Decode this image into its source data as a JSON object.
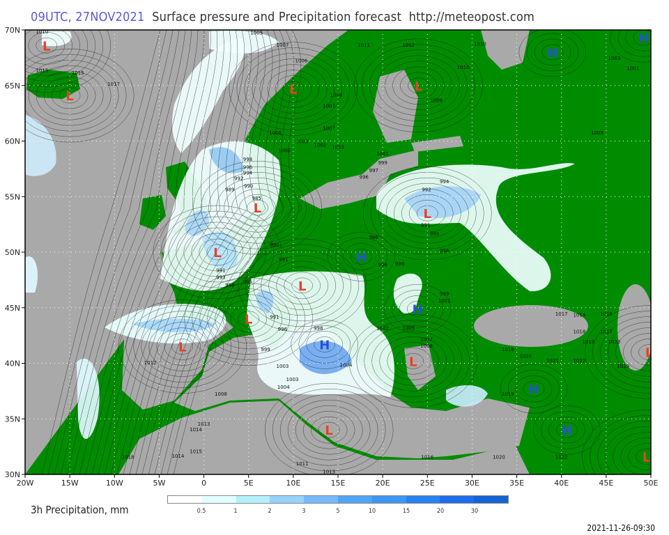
{
  "title": {
    "time": "09UTC, 27NOV2021",
    "text": "Surface pressure and Precipitation forecast",
    "url": "http://meteopost.com"
  },
  "map": {
    "lon_range": [
      -20,
      50
    ],
    "lat_range": [
      30,
      70
    ],
    "colors": {
      "sea": "#a9a9a9",
      "land": "#008c00",
      "low": "#e8402a",
      "high": "#2850d8",
      "isobar": "#1a1a1a",
      "grid": "#ffffff"
    },
    "lon_ticks": [
      "20W",
      "15W",
      "10W",
      "5W",
      "0",
      "5E",
      "10E",
      "15E",
      "20E",
      "25E",
      "30E",
      "35E",
      "40E",
      "45E",
      "50E"
    ],
    "lat_ticks": [
      "30N",
      "35N",
      "40N",
      "45N",
      "50N",
      "55N",
      "60N",
      "65N",
      "70N"
    ],
    "centers": [
      {
        "type": "L",
        "lon": -17.6,
        "lat": 68.6
      },
      {
        "type": "L",
        "lon": -15,
        "lat": 64.1
      },
      {
        "type": "L",
        "lon": 10,
        "lat": 64.7
      },
      {
        "type": "L",
        "lon": 24,
        "lat": 65
      },
      {
        "type": "L",
        "lon": 6,
        "lat": 54
      },
      {
        "type": "L",
        "lon": 1.5,
        "lat": 50
      },
      {
        "type": "L",
        "lon": 25,
        "lat": 53.5
      },
      {
        "type": "L",
        "lon": 11,
        "lat": 47
      },
      {
        "type": "L",
        "lon": 5,
        "lat": 44
      },
      {
        "type": "L",
        "lon": -2.4,
        "lat": 41.5
      },
      {
        "type": "L",
        "lon": 23.4,
        "lat": 40.2
      },
      {
        "type": "L",
        "lon": 14,
        "lat": 34
      },
      {
        "type": "L",
        "lon": 49.8,
        "lat": 41
      },
      {
        "type": "L",
        "lon": 49.5,
        "lat": 31.6
      },
      {
        "type": "H",
        "lon": 39,
        "lat": 68
      },
      {
        "type": "H",
        "lon": 49.2,
        "lat": 69.3
      },
      {
        "type": "H",
        "lon": 17.6,
        "lat": 49.6
      },
      {
        "type": "H",
        "lon": 23.9,
        "lat": 44.9
      },
      {
        "type": "H",
        "lon": 13.5,
        "lat": 41.7
      },
      {
        "type": "H",
        "lon": 36.9,
        "lat": 37.7
      },
      {
        "type": "H",
        "lon": 40.6,
        "lat": 34
      }
    ],
    "isobar_labels": [
      {
        "v": "1010",
        "lon": -18.1,
        "lat": 69.7
      },
      {
        "v": "1005",
        "lon": 5.9,
        "lat": 69.6
      },
      {
        "v": "1007",
        "lon": 8.8,
        "lat": 68.5
      },
      {
        "v": "1006",
        "lon": 10.9,
        "lat": 67.1
      },
      {
        "v": "1011",
        "lon": 17.9,
        "lat": 68.5
      },
      {
        "v": "1012",
        "lon": 22.9,
        "lat": 68.5
      },
      {
        "v": "1010",
        "lon": 30.9,
        "lat": 68.6
      },
      {
        "v": "1015",
        "lon": -18.1,
        "lat": 66.2
      },
      {
        "v": "1015",
        "lon": -14.1,
        "lat": 66
      },
      {
        "v": "1017",
        "lon": -10.1,
        "lat": 65
      },
      {
        "v": "1008",
        "lon": 14.8,
        "lat": 64
      },
      {
        "v": "1007",
        "lon": 14,
        "lat": 63
      },
      {
        "v": "1009",
        "lon": 26,
        "lat": 63.5
      },
      {
        "v": "1010",
        "lon": 29,
        "lat": 66.5
      },
      {
        "v": "1003",
        "lon": 45.9,
        "lat": 67.3
      },
      {
        "v": "1001",
        "lon": 48,
        "lat": 66.4
      },
      {
        "v": "1009",
        "lon": 44,
        "lat": 60.6
      },
      {
        "v": "1007",
        "lon": 14,
        "lat": 61
      },
      {
        "v": "1003",
        "lon": 15,
        "lat": 59.3
      },
      {
        "v": "1001",
        "lon": 20,
        "lat": 58.7
      },
      {
        "v": "999",
        "lon": 20,
        "lat": 57.9
      },
      {
        "v": "997",
        "lon": 19,
        "lat": 57.2
      },
      {
        "v": "996",
        "lon": 17.9,
        "lat": 56.6
      },
      {
        "v": "998",
        "lon": 4.9,
        "lat": 58.2
      },
      {
        "v": "996",
        "lon": 4.9,
        "lat": 57.5
      },
      {
        "v": "994",
        "lon": 4.9,
        "lat": 57
      },
      {
        "v": "992",
        "lon": 3.9,
        "lat": 56.5
      },
      {
        "v": "990",
        "lon": 5,
        "lat": 55.8
      },
      {
        "v": "989",
        "lon": 2.9,
        "lat": 55.5
      },
      {
        "v": "985",
        "lon": 5.9,
        "lat": 54.7
      },
      {
        "v": "994",
        "lon": 26.9,
        "lat": 56.2
      },
      {
        "v": "992",
        "lon": 24.9,
        "lat": 55.5
      },
      {
        "v": "991",
        "lon": 24.8,
        "lat": 52.3
      },
      {
        "v": "993",
        "lon": 25.8,
        "lat": 51.5
      },
      {
        "v": "996",
        "lon": 19,
        "lat": 51.2
      },
      {
        "v": "998",
        "lon": 26.9,
        "lat": 50
      },
      {
        "v": "990",
        "lon": 7.9,
        "lat": 50.5
      },
      {
        "v": "991",
        "lon": 8.9,
        "lat": 49.2
      },
      {
        "v": "991",
        "lon": 1.9,
        "lat": 48.2
      },
      {
        "v": "993",
        "lon": 1.9,
        "lat": 47.6
      },
      {
        "v": "996",
        "lon": 2.9,
        "lat": 46.9
      },
      {
        "v": "995",
        "lon": 4.9,
        "lat": 47.2
      },
      {
        "v": "998",
        "lon": 20,
        "lat": 48.7
      },
      {
        "v": "999",
        "lon": 21.9,
        "lat": 48.8
      },
      {
        "v": "999",
        "lon": 26.9,
        "lat": 46.1
      },
      {
        "v": "1001",
        "lon": 26.9,
        "lat": 45.5
      },
      {
        "v": "991",
        "lon": 7.9,
        "lat": 44
      },
      {
        "v": "996",
        "lon": 8.8,
        "lat": 42.9
      },
      {
        "v": "999",
        "lon": 6.9,
        "lat": 41.1
      },
      {
        "v": "998",
        "lon": 12.8,
        "lat": 43
      },
      {
        "v": "1002",
        "lon": 20,
        "lat": 43
      },
      {
        "v": "1005",
        "lon": 22.9,
        "lat": 43
      },
      {
        "v": "1007",
        "lon": 24.9,
        "lat": 42
      },
      {
        "v": "1008",
        "lon": 24.9,
        "lat": 41.4
      },
      {
        "v": "1003",
        "lon": 8.8,
        "lat": 39.6
      },
      {
        "v": "1003",
        "lon": 9.9,
        "lat": 38.4
      },
      {
        "v": "1004",
        "lon": 8.9,
        "lat": 37.7
      },
      {
        "v": "1004",
        "lon": 15.9,
        "lat": 39.7
      },
      {
        "v": "1008",
        "lon": 1.9,
        "lat": 37.1
      },
      {
        "v": "1012",
        "lon": -6,
        "lat": 39.9
      },
      {
        "v": "1017",
        "lon": 40,
        "lat": 44.3
      },
      {
        "v": "1014",
        "lon": 42,
        "lat": 44.2
      },
      {
        "v": "1018",
        "lon": 45,
        "lat": 44.3
      },
      {
        "v": "1018",
        "lon": 42,
        "lat": 42.7
      },
      {
        "v": "1017",
        "lon": 45,
        "lat": 42.7
      },
      {
        "v": "1019",
        "lon": 43,
        "lat": 41.8
      },
      {
        "v": "1020",
        "lon": 45.9,
        "lat": 41.8
      },
      {
        "v": "1016",
        "lon": 34,
        "lat": 41.1
      },
      {
        "v": "1016",
        "lon": 36,
        "lat": 40.5
      },
      {
        "v": "1021",
        "lon": 39,
        "lat": 40.1
      },
      {
        "v": "1022",
        "lon": 42,
        "lat": 40.1
      },
      {
        "v": "1019",
        "lon": 46.9,
        "lat": 39.6
      },
      {
        "v": "1019",
        "lon": 34,
        "lat": 37.1
      },
      {
        "v": "1014",
        "lon": -0.9,
        "lat": 33.9
      },
      {
        "v": "1015",
        "lon": -0.9,
        "lat": 31.9
      },
      {
        "v": "1013",
        "lon": 0,
        "lat": 34.4
      },
      {
        "v": "1018",
        "lon": -8.5,
        "lat": 31.4
      },
      {
        "v": "1014",
        "lon": -2.9,
        "lat": 31.5
      },
      {
        "v": "1011",
        "lon": 11,
        "lat": 30.8
      },
      {
        "v": "1013",
        "lon": 14,
        "lat": 30.1
      },
      {
        "v": "1016",
        "lon": 25,
        "lat": 31.4
      },
      {
        "v": "1020",
        "lon": 33,
        "lat": 31.4
      },
      {
        "v": "1022",
        "lon": 40,
        "lat": 31.4
      },
      {
        "v": "1006",
        "lon": 8,
        "lat": 60.6
      },
      {
        "v": "1003",
        "lon": 11,
        "lat": 59.8
      },
      {
        "v": "1002",
        "lon": 13,
        "lat": 59.5
      },
      {
        "v": "1000",
        "lon": 9,
        "lat": 59
      }
    ]
  },
  "legend": {
    "title": "3h Precipitation, mm",
    "colors": [
      "#ffffff",
      "#e0ffff",
      "#b4f0fa",
      "#96d2fa",
      "#78b9fa",
      "#50a5f5",
      "#3c96f5",
      "#2882f0",
      "#1e6eeb",
      "#1464d2"
    ],
    "labels": [
      "0.5",
      "1",
      "2",
      "3",
      "5",
      "10",
      "15",
      "20",
      "30"
    ]
  },
  "timestamp": "2021-11-26-09:30"
}
